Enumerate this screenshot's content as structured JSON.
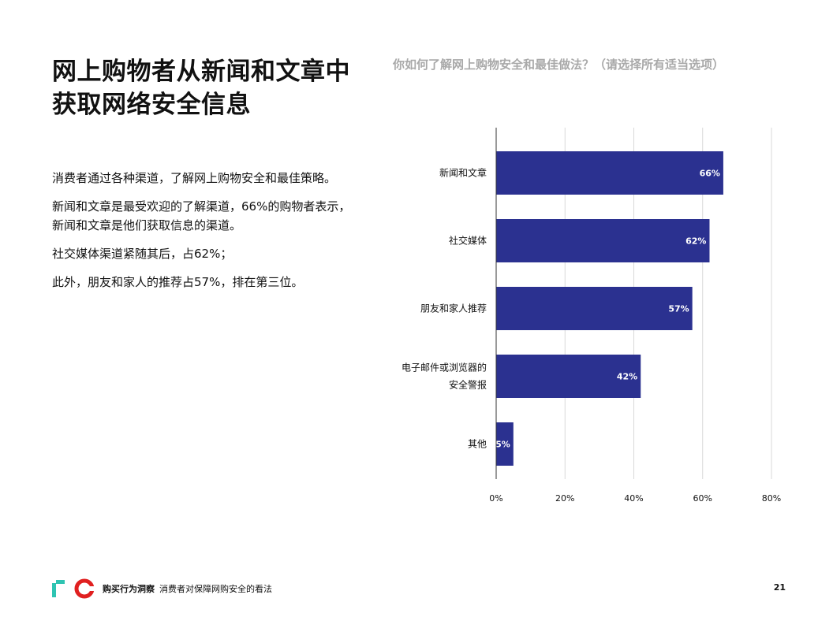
{
  "page": {
    "title_line1": "网上购物者从新闻和文章中",
    "title_line2": "获取网络安全信息",
    "paragraphs": [
      "消费者通过各种渠道，了解网上购物安全和最佳策略。",
      "新闻和文章是最受欢迎的了解渠道，66%的购物者表示，新闻和文章是他们获取信息的渠道。",
      "社交媒体渠道紧随其后，占62%；",
      "此外，朋友和家人的推荐占57%，排在第三位。"
    ]
  },
  "chart_data": {
    "type": "bar",
    "orientation": "horizontal",
    "title": "你如何了解网上购物安全和最佳做法？（请选择所有适当选项）",
    "categories": [
      [
        "新闻和文章"
      ],
      [
        "社交媒体"
      ],
      [
        "朋友和家人推荐"
      ],
      [
        "电子邮件或浏览器的",
        "安全警报"
      ],
      [
        "其他"
      ]
    ],
    "values": [
      66,
      62,
      57,
      42,
      5
    ],
    "value_labels": [
      "66%",
      "62%",
      "57%",
      "42%",
      "5%"
    ],
    "x_ticks": [
      "0%",
      "20%",
      "40%",
      "60%",
      "80%"
    ],
    "xlim": [
      0,
      80
    ],
    "grid": true,
    "bar_color": "#2b3190"
  },
  "footer": {
    "brand": "购买行为洞察",
    "subtitle": "消费者对保障网购安全的看法",
    "page_number": "21",
    "logo_colors": [
      "#2fc4b2",
      "#e02020"
    ]
  }
}
